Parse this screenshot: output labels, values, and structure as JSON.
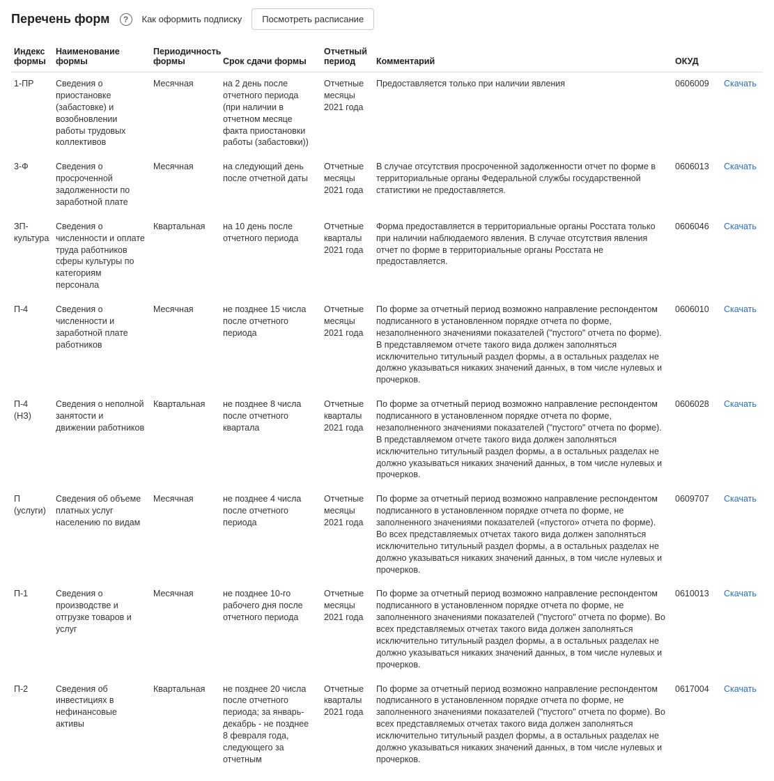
{
  "header": {
    "title": "Перечень форм",
    "help_text": "Как оформить подписку",
    "schedule_button": "Посмотреть расписание"
  },
  "table": {
    "columns": {
      "index": "Индекс формы",
      "name": "Наименование формы",
      "periodicity": "Периодичность формы",
      "deadline": "Срок сдачи формы",
      "report_period": "Отчетный период",
      "comment": "Комментарий",
      "okud": "ОКУД",
      "action": ""
    },
    "download_label": "Скачать",
    "rows": [
      {
        "index": "1-ПР",
        "name": "Сведения о приостановке (забастовке) и возобновлении работы трудовых коллективов",
        "periodicity": "Месячная",
        "deadline": "на 2 день после отчетного периода (при наличии в отчетном месяце факта приостановки работы (забастовки))",
        "report_period": "Отчетные месяцы 2021 года",
        "comment": "Предоставляется только при наличии явления",
        "okud": "0606009"
      },
      {
        "index": "3-Ф",
        "name": "Сведения о просроченной задолженности по заработной плате",
        "periodicity": "Месячная",
        "deadline": "на следующий день после отчетной даты",
        "report_period": "Отчетные месяцы 2021 года",
        "comment": "В случае отсутствия просроченной задолженности отчет по форме в территориальные органы Федеральной службы государственной статистики не предоставляется.",
        "okud": "0606013"
      },
      {
        "index": "ЗП-культура",
        "name": "Сведения о численности и оплате труда работников сферы культуры по категориям персонала",
        "periodicity": "Квартальная",
        "deadline": "на 10 день после отчетного периода",
        "report_period": "Отчетные кварталы 2021 года",
        "comment": "Форма предоставляется в территориальные органы Росстата только при наличии наблюдаемого явления. В случае отсутствия явления отчет по форме в территориальные органы Росстата не предоставляется.",
        "okud": "0606046"
      },
      {
        "index": "П-4",
        "name": "Сведения о численности и заработной плате работников",
        "periodicity": "Месячная",
        "deadline": "не позднее 15 числа после отчетного периода",
        "report_period": "Отчетные месяцы 2021 года",
        "comment": "По форме за отчетный период возможно направление респондентом подписанного в установленном порядке отчета по форме, незаполненного значениями показателей (\"пустого\" отчета по форме). В представляемом отчете такого вида должен заполняться исключительно титульный раздел формы, а в остальных разделах не должно указываться никаких значений данных, в том числе нулевых и прочерков.",
        "okud": "0606010"
      },
      {
        "index": "П-4 (НЗ)",
        "name": "Сведения о неполной занятости и движении работников",
        "periodicity": "Квартальная",
        "deadline": "не позднее 8 числа после отчетного квартала",
        "report_period": "Отчетные кварталы 2021 года",
        "comment": "По форме за отчетный период возможно направление респондентом подписанного в установленном порядке отчета по форме, незаполненного значениями показателей (\"пустого\" отчета по форме). В представляемом отчете такого вида должен заполняться исключительно титульный раздел формы, а в остальных разделах не должно указываться никаких значений данных, в том числе нулевых и прочерков.",
        "okud": "0606028"
      },
      {
        "index": "П (услуги)",
        "name": "Сведения об объеме платных услуг населению по видам",
        "periodicity": "Месячная",
        "deadline": "не позднее 4 числа после отчетного периода",
        "report_period": "Отчетные месяцы 2021 года",
        "comment": "По форме за отчетный период возможно направление респондентом подписанного в установленном порядке отчета по форме, не заполненного значениями показателей («пустого» отчета по форме). Во всех представляемых отчетах такого вида должен заполняться исключительно титульный раздел формы, а в остальных разделах не должно указываться никаких значений данных, в том числе нулевых и прочерков.",
        "okud": "0609707"
      },
      {
        "index": "П-1",
        "name": "Сведения о производстве и отгрузке товаров и услуг",
        "periodicity": "Месячная",
        "deadline": "не позднее 10-го рабочего дня после отчетного периода",
        "report_period": "Отчетные месяцы 2021 года",
        "comment": "По форме за отчетный период возможно направление респондентом подписанного в установленном порядке отчета по форме, не заполненного значениями показателей (\"пустого\" отчета по форме). Во всех представляемых отчетах такого вида должен заполняться исключительно титульный раздел формы, а в остальных разделах не должно указываться никаких значений данных, в том числе нулевых и прочерков.",
        "okud": "0610013"
      },
      {
        "index": "П-2",
        "name": "Сведения об инвестициях в нефинансовые активы",
        "periodicity": "Квартальная",
        "deadline": "не позднее 20 числа после отчетного периода; за январь-декабрь - не позднее 8 февраля года, следующего за отчетным",
        "report_period": "Отчетные кварталы 2021 года",
        "comment": "По форме за отчетный период возможно направление респондентом подписанного в установленном порядке отчета по форме, не заполненного значениями показателей (\"пустого\" отчета по форме). Во всех представляемых отчетах такого вида должен заполняться исключительно титульный раздел формы, а в остальных разделах не должно указываться никаких значений данных, в том числе нулевых и прочерков.",
        "okud": "0617004"
      }
    ]
  }
}
